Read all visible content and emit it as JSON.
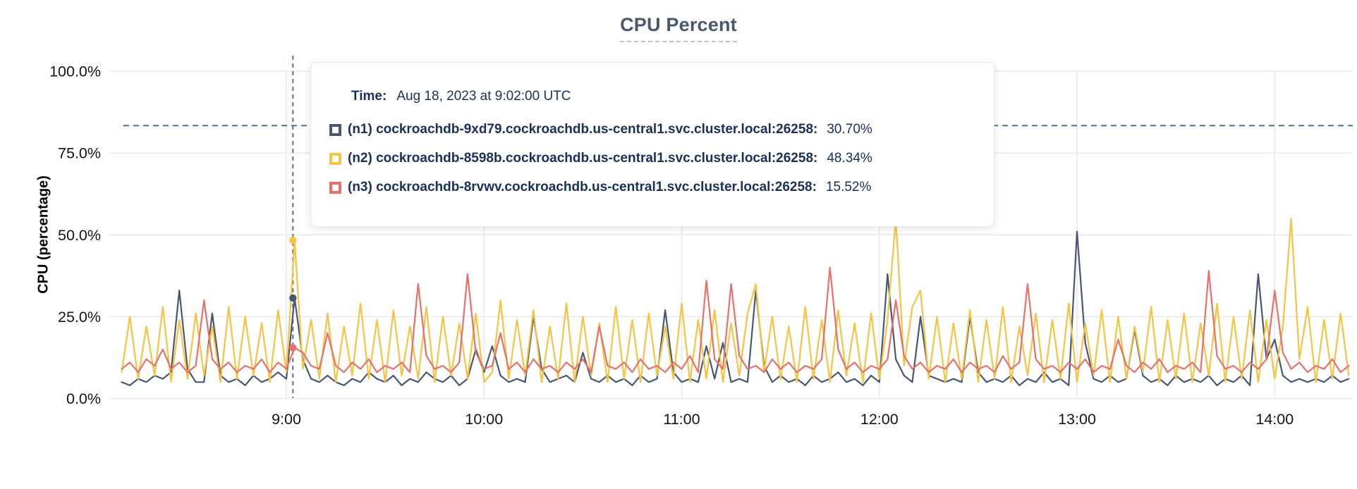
{
  "title": "CPU Percent",
  "colors": {
    "accent_navy": "#475872",
    "accent_yellow": "#F6C343",
    "accent_red": "#E8706A",
    "grid": "#ededed",
    "dashed_guides": "#54708C",
    "tooltip_text": "#1A3059",
    "axis_text": "#141414",
    "title_text": "#48596F"
  },
  "tooltip": {
    "time_label": "Time:",
    "time_value": "Aug 18, 2023 at 9:02:00 UTC",
    "rows": [
      {
        "label": "(n1) cockroachdb-9xd79.cockroachdb.us-central1.svc.cluster.local:26258:",
        "value": "30.70%"
      },
      {
        "label": "(n2) cockroachdb-8598b.cockroachdb.us-central1.svc.cluster.local:26258:",
        "value": "48.34%"
      },
      {
        "label": "(n3) cockroachdb-8rvwv.cockroachdb.us-central1.svc.cluster.local:26258:",
        "value": "15.52%"
      }
    ]
  },
  "chart_data": {
    "type": "line",
    "title": "CPU Percent",
    "xlabel": "",
    "ylabel": "CPU (percentage)",
    "ylim": [
      0,
      100
    ],
    "grid": true,
    "legend_position": "tooltip-overlay",
    "y_tick_percents": [
      100,
      75,
      50,
      25,
      0
    ],
    "y_tick_labels": [
      "100.0%",
      "75.0%",
      "50.0%",
      "25.0%",
      "0.0%"
    ],
    "x_tick_minutes": [
      540,
      600,
      660,
      720,
      780,
      840
    ],
    "x_tick_labels": [
      "9:00",
      "10:00",
      "11:00",
      "12:00",
      "13:00",
      "14:00"
    ],
    "x_start_min": 490,
    "x_step_min": 2.5,
    "threshold_percent": 83.4,
    "hover": {
      "minute": 542,
      "time": "Aug 18, 2023 at 9:02:00 UTC",
      "values": [
        30.7,
        48.34,
        15.52
      ]
    },
    "series": [
      {
        "id": "n1",
        "name": "(n1) cockroachdb-9xd79.cockroachdb.us-central1.svc.cluster.local:26258",
        "color": "#475872",
        "values": [
          5,
          4,
          6,
          5,
          7,
          6,
          8,
          33,
          9,
          5,
          5,
          26,
          7,
          5,
          6,
          4,
          7,
          5,
          6,
          8,
          6,
          30.7,
          12,
          6,
          5,
          7,
          5,
          4,
          6,
          5,
          8,
          6,
          5,
          7,
          4,
          6,
          5,
          8,
          6,
          5,
          7,
          4,
          6,
          15,
          8,
          16,
          7,
          5,
          6,
          5,
          25,
          9,
          5,
          6,
          7,
          5,
          14,
          6,
          5,
          7,
          5,
          6,
          4,
          7,
          5,
          6,
          27,
          8,
          5,
          6,
          5,
          16,
          6,
          17,
          5,
          6,
          5,
          33,
          10,
          5,
          7,
          5,
          6,
          4,
          7,
          5,
          6,
          8,
          5,
          6,
          4,
          7,
          5,
          38,
          12,
          7,
          5,
          25,
          7,
          6,
          5,
          6,
          5,
          25,
          8,
          5,
          6,
          5,
          7,
          4,
          6,
          5,
          8,
          5,
          6,
          4,
          51,
          17,
          6,
          5,
          7,
          5,
          6,
          21,
          7,
          5,
          6,
          4,
          7,
          5,
          6,
          5,
          7,
          4,
          6,
          5,
          7,
          4,
          38,
          12,
          18,
          7,
          5,
          6,
          5,
          6,
          5,
          7,
          5,
          6
        ]
      },
      {
        "id": "n2",
        "name": "(n2) cockroachdb-8598b.cockroachdb.us-central1.svc.cluster.local:26258",
        "color": "#F6C343",
        "values": [
          8,
          25,
          6,
          22,
          7,
          28,
          5,
          24,
          6,
          26,
          7,
          22,
          5,
          28,
          6,
          25,
          7,
          23,
          5,
          27,
          8,
          48.34,
          9,
          24,
          6,
          26,
          5,
          22,
          7,
          29,
          6,
          24,
          5,
          27,
          7,
          22,
          6,
          28,
          5,
          25,
          7,
          23,
          6,
          26,
          5,
          8,
          30,
          6,
          24,
          7,
          27,
          5,
          22,
          6,
          29,
          5,
          25,
          7,
          23,
          5,
          28,
          6,
          24,
          5,
          26,
          7,
          22,
          6,
          29,
          5,
          24,
          6,
          27,
          5,
          23,
          7,
          26,
          35,
          8,
          25,
          6,
          22,
          5,
          28,
          6,
          24,
          5,
          27,
          7,
          23,
          5,
          26,
          6,
          24,
          55,
          10,
          28,
          33,
          6,
          25,
          5,
          23,
          6,
          27,
          5,
          24,
          6,
          28,
          5,
          22,
          7,
          26,
          5,
          24,
          6,
          29,
          5,
          23,
          7,
          27,
          5,
          25,
          6,
          22,
          8,
          28,
          5,
          24,
          6,
          26,
          5,
          23,
          7,
          29,
          5,
          25,
          6,
          27,
          5,
          24,
          6,
          22,
          55,
          12,
          28,
          5,
          24,
          6,
          26,
          7
        ]
      },
      {
        "id": "n3",
        "name": "(n3) cockroachdb-8rvwv.cockroachdb.us-central1.svc.cluster.local:26258",
        "color": "#E8706A",
        "values": [
          9,
          11,
          8,
          12,
          10,
          15,
          9,
          11,
          8,
          10,
          30,
          12,
          9,
          11,
          8,
          10,
          9,
          12,
          8,
          11,
          9,
          15.52,
          14,
          10,
          9,
          20,
          10,
          8,
          11,
          9,
          12,
          8,
          10,
          9,
          11,
          8,
          35,
          13,
          9,
          10,
          8,
          11,
          38,
          14,
          9,
          10,
          20,
          9,
          11,
          8,
          12,
          9,
          10,
          8,
          11,
          9,
          12,
          8,
          22,
          10,
          9,
          11,
          8,
          12,
          9,
          10,
          8,
          11,
          9,
          13,
          8,
          36,
          12,
          9,
          35,
          13,
          9,
          10,
          8,
          12,
          9,
          11,
          8,
          10,
          9,
          12,
          40,
          15,
          9,
          11,
          8,
          10,
          9,
          12,
          30,
          13,
          9,
          11,
          8,
          10,
          9,
          12,
          8,
          11,
          9,
          10,
          8,
          13,
          9,
          11,
          35,
          12,
          9,
          10,
          8,
          11,
          9,
          12,
          8,
          10,
          9,
          18,
          10,
          8,
          11,
          9,
          12,
          8,
          10,
          9,
          11,
          8,
          39,
          13,
          9,
          10,
          8,
          11,
          9,
          12,
          33,
          14,
          9,
          11,
          8,
          10,
          9,
          12,
          8,
          10
        ]
      }
    ]
  }
}
